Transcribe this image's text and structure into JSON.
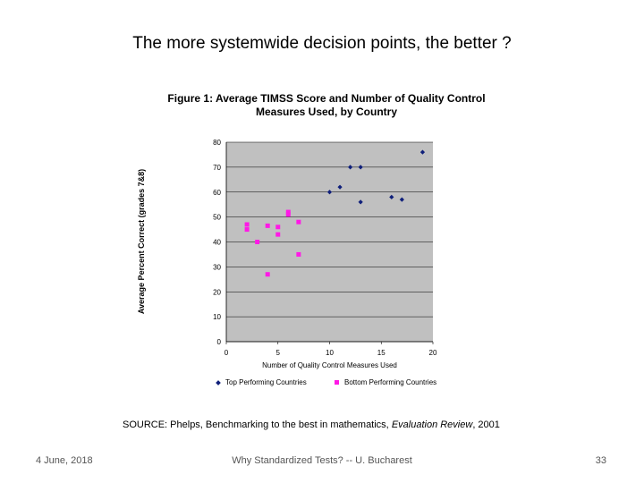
{
  "slide": {
    "title": "The more systemwide decision points, the better ?",
    "source_prefix": "SOURCE: Phelps, Benchmarking to the best in mathematics, ",
    "source_journal": "Evaluation Review",
    "source_suffix": ", 2001",
    "footer_date": "4 June, 2018",
    "footer_center": "Why Standardized Tests? -- U. Bucharest",
    "page_number": "33"
  },
  "chart_data": {
    "type": "scatter",
    "title_line1": "Figure 1: Average TIMSS Score and Number of Quality Control",
    "title_line2": "Measures Used, by Country",
    "xlabel": "Number of Quality Control Measures Used",
    "ylabel": "Average Percent Correct (grades 7&8)",
    "xlim": [
      0,
      20
    ],
    "ylim": [
      0,
      80
    ],
    "xticks": [
      0,
      5,
      10,
      15,
      20
    ],
    "yticks": [
      0,
      10,
      20,
      30,
      40,
      50,
      60,
      70,
      80
    ],
    "grid": true,
    "legend_position": "bottom",
    "series": [
      {
        "name": "Top Performing Countries",
        "marker": "diamond",
        "color": "#0f1f7a",
        "points": [
          [
            10,
            60
          ],
          [
            11,
            62
          ],
          [
            12,
            70
          ],
          [
            13,
            70
          ],
          [
            13,
            56
          ],
          [
            16,
            58
          ],
          [
            17,
            57
          ],
          [
            19,
            76
          ]
        ]
      },
      {
        "name": "Bottom Performing Countries",
        "marker": "square",
        "color": "#ff19e6",
        "points": [
          [
            2,
            47
          ],
          [
            2,
            45
          ],
          [
            3,
            40
          ],
          [
            4,
            46.5
          ],
          [
            4,
            27
          ],
          [
            5,
            46
          ],
          [
            5,
            43
          ],
          [
            6,
            52
          ],
          [
            6,
            51
          ],
          [
            7,
            48
          ],
          [
            7,
            35
          ]
        ]
      }
    ]
  }
}
